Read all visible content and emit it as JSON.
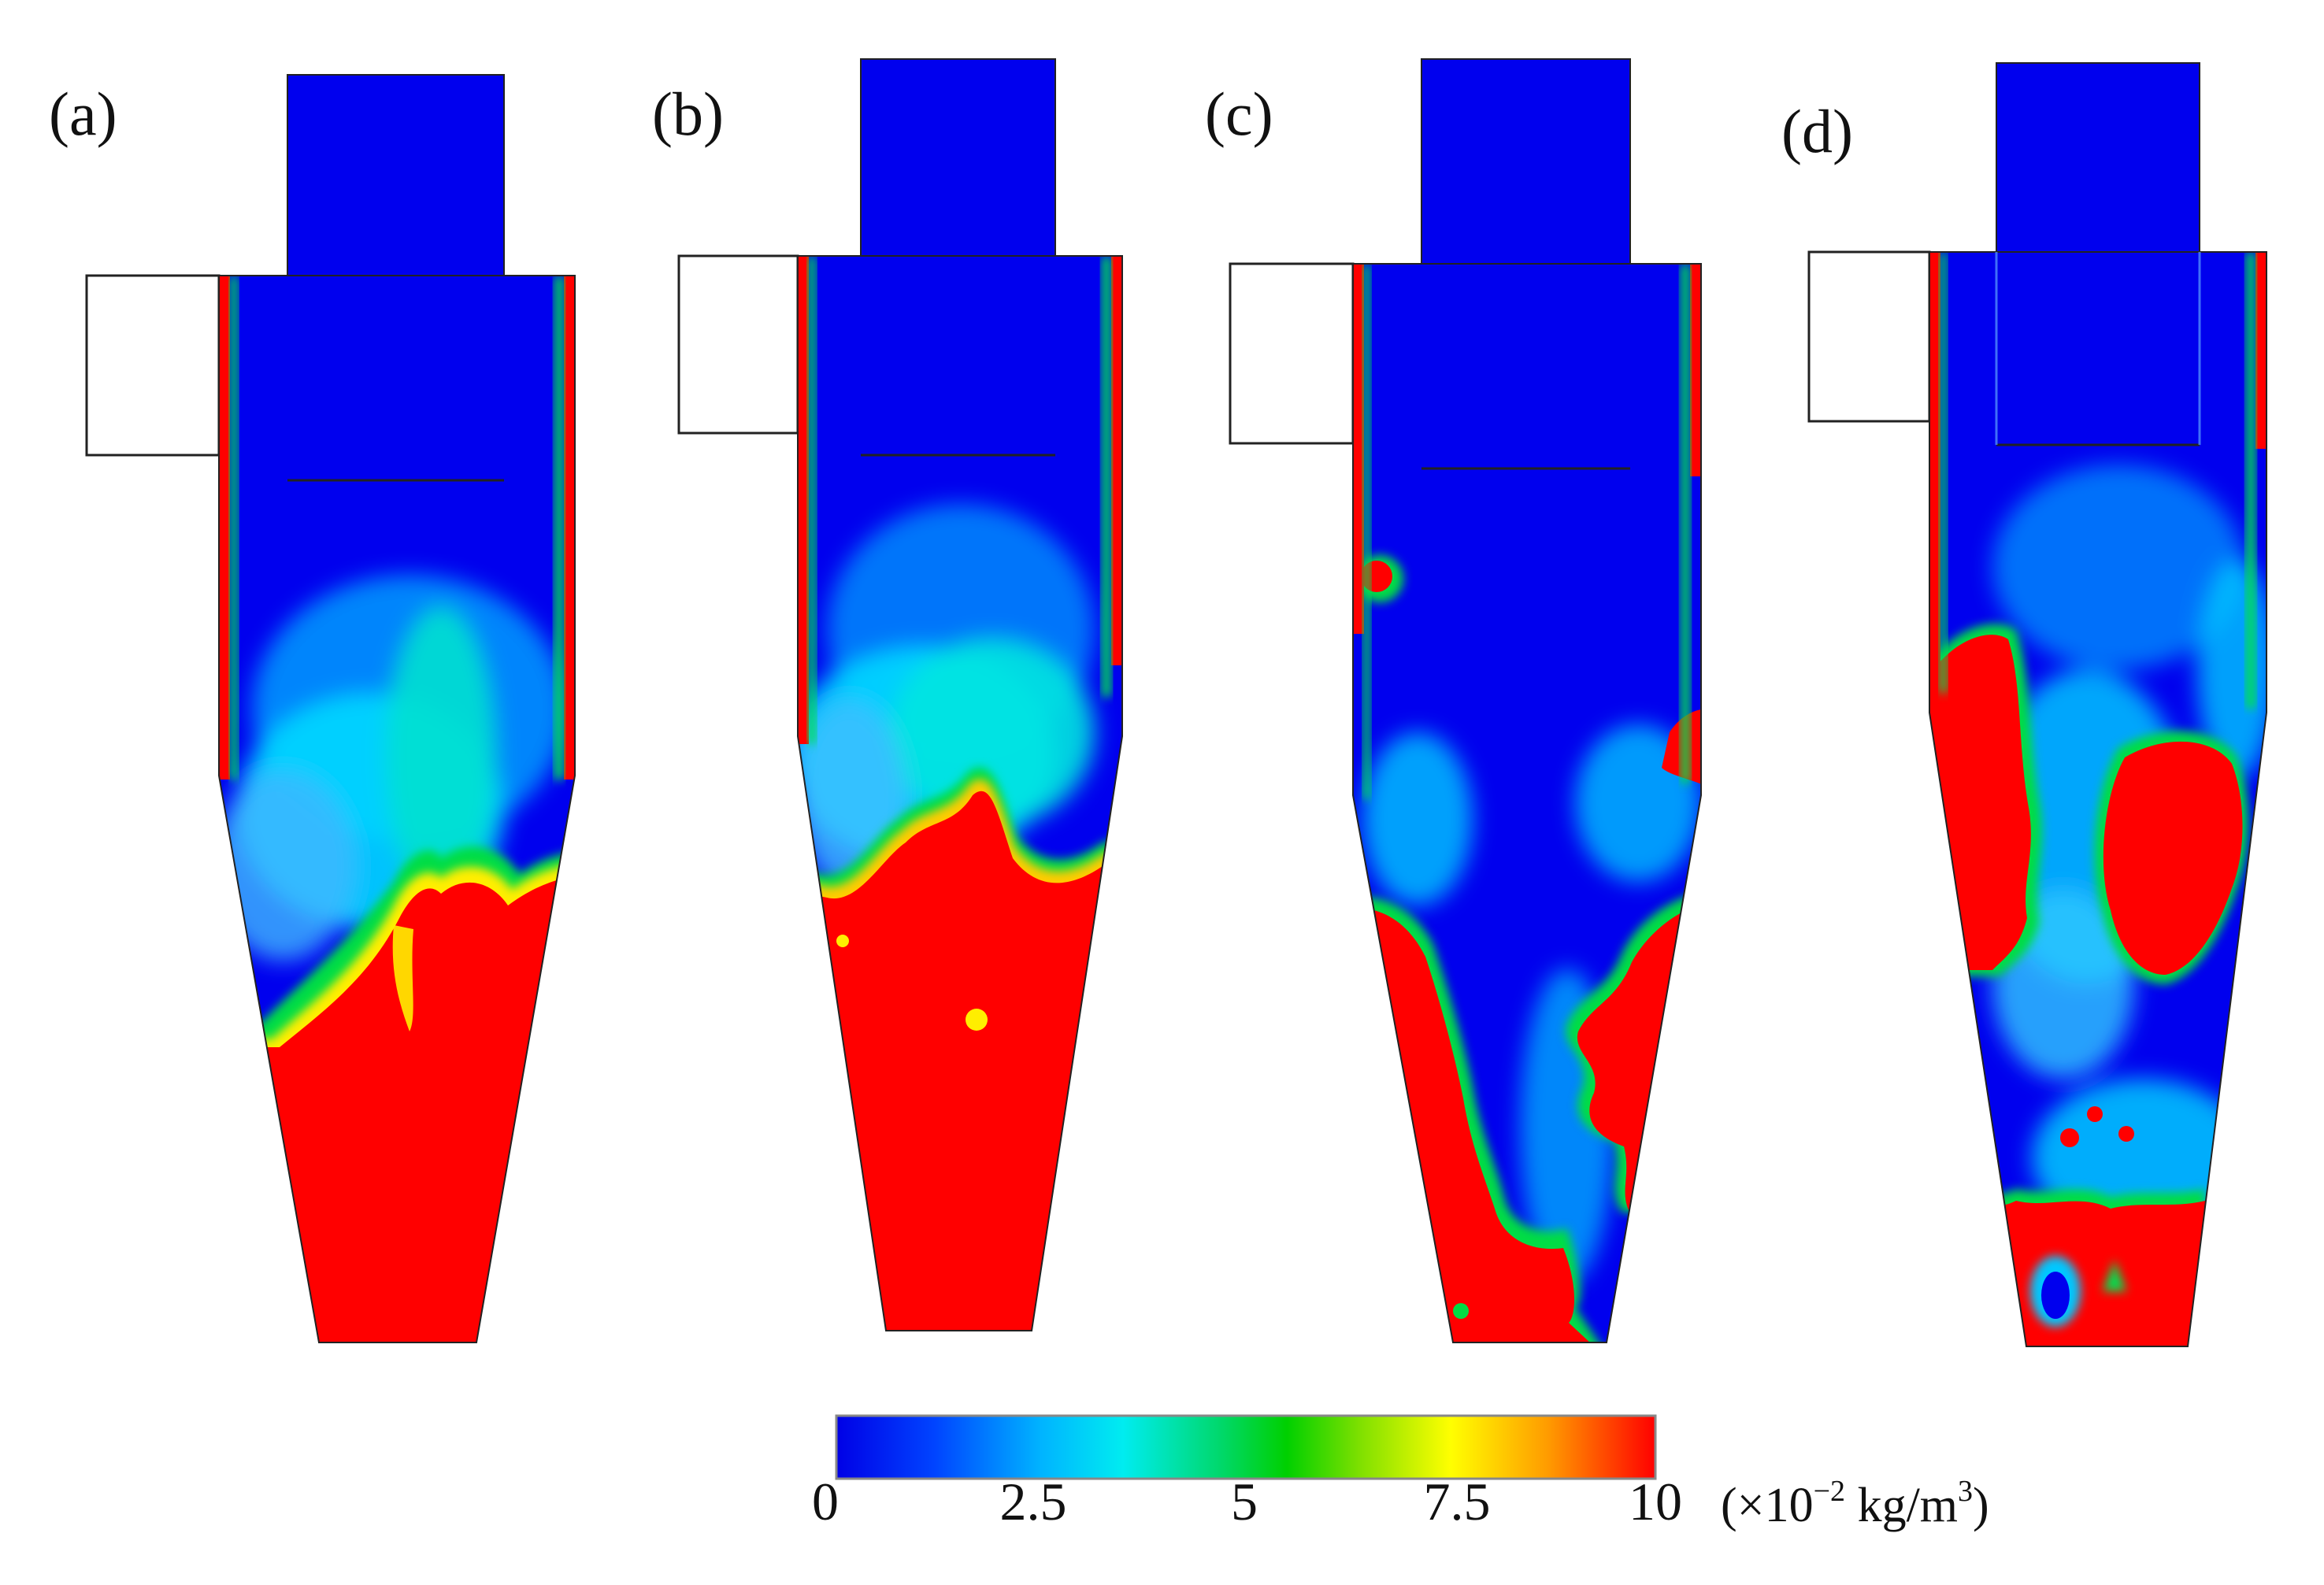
{
  "panels": [
    {
      "label": "(a)"
    },
    {
      "label": "(b)"
    },
    {
      "label": "(c)"
    },
    {
      "label": "(d)"
    }
  ],
  "colorbar": {
    "ticks": [
      "0",
      "2.5",
      "5",
      "7.5",
      "10"
    ],
    "unit_prefix": "(×10",
    "unit_exponent": "−2",
    "unit_mid": " kg/m",
    "unit_power": "3",
    "unit_suffix": ")",
    "stops": [
      "#0000e6",
      "#0044ff",
      "#0099ff",
      "#00e5ff",
      "#00e08a",
      "#00d000",
      "#7fe000",
      "#ffff00",
      "#ff9900",
      "#ff0000"
    ]
  },
  "colors": {
    "low": "#0000ee",
    "mid_low": "#00ccff",
    "mid": "#00e050",
    "high": "#ff0000",
    "outline": "#222222"
  }
}
